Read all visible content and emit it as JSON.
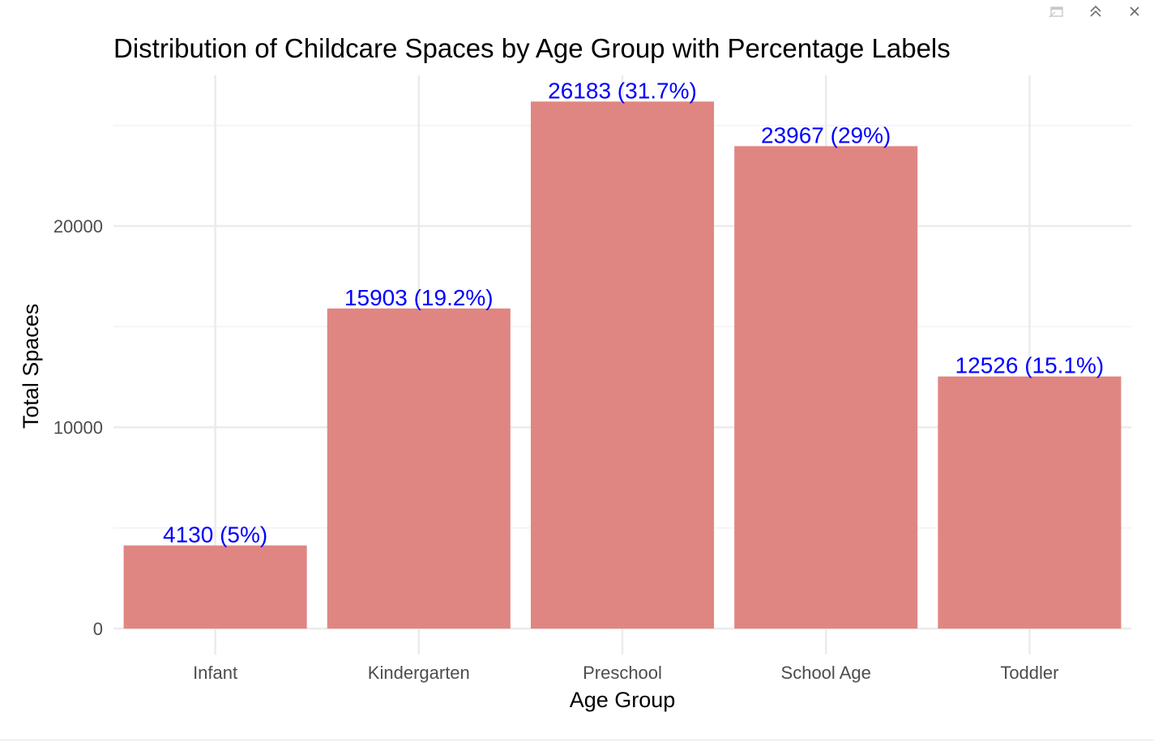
{
  "toolbar": {
    "icons": [
      "popout-icon",
      "collapse-icon",
      "close-icon"
    ]
  },
  "chart_data": {
    "type": "bar",
    "title": "Distribution of Childcare Spaces by Age Group with Percentage Labels",
    "xlabel": "Age Group",
    "ylabel": "Total Spaces",
    "categories": [
      "Infant",
      "Kindergarten",
      "Preschool",
      "School Age",
      "Toddler"
    ],
    "values": [
      4130,
      15903,
      26183,
      23967,
      12526
    ],
    "data_labels": [
      "4130 (5%)",
      "15903 (19.2%)",
      "26183 (31.7%)",
      "23967 (29%)",
      "12526 (15.1%)"
    ],
    "yticks": [
      0,
      10000,
      20000
    ],
    "ytick_labels": [
      "0",
      "10000",
      "20000"
    ],
    "ylim": [
      0,
      27400
    ],
    "grid": true,
    "legend": "none",
    "colors": {
      "bar": "#E08682",
      "data_label": "#0000FF",
      "grid": "#EBEBEB",
      "tick_label": "#4D4D4D",
      "title": "#000000"
    }
  }
}
